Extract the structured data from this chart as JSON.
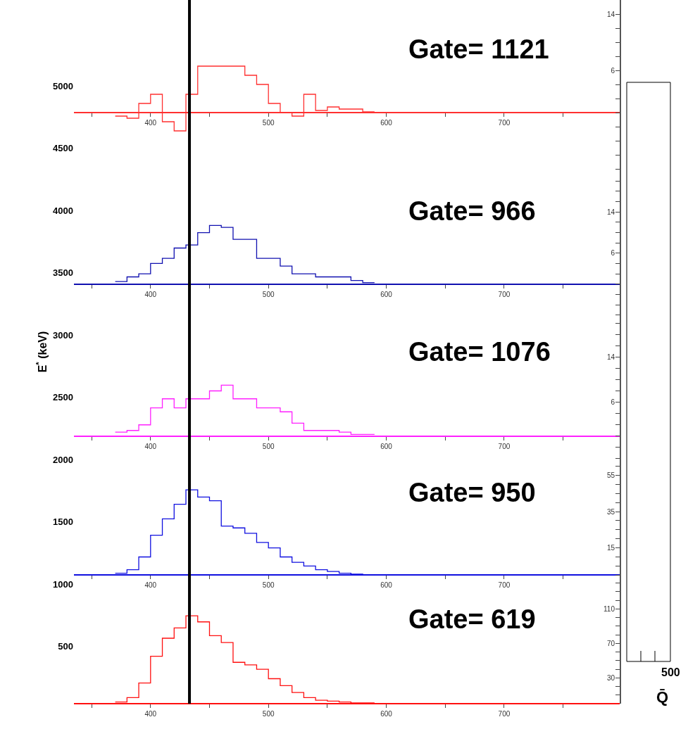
{
  "chart_data": [
    {
      "type": "histogram",
      "color": "#ff3030",
      "bins": [
        370,
        380,
        390,
        400,
        410,
        420,
        430,
        440,
        450,
        460,
        470,
        480,
        490,
        500,
        510,
        520,
        530,
        540,
        550,
        560,
        570,
        580,
        590
      ],
      "values": [
        -0.5,
        -0.8,
        1.3,
        2.6,
        -1.3,
        -2.6,
        2.6,
        6.6,
        6.6,
        6.6,
        6.6,
        5.3,
        4,
        1.3,
        0,
        -0.5,
        2.6,
        0.3,
        0.8,
        0.5,
        0.5,
        0.1
      ],
      "xlim": [
        335,
        798
      ],
      "xticks": [
        {
          "value": 350,
          "label": null
        },
        400,
        {
          "value": 450,
          "label": null
        },
        500,
        {
          "value": 550,
          "label": null
        },
        600,
        {
          "value": 650,
          "label": null
        },
        700,
        {
          "value": 750,
          "label": null
        }
      ],
      "ylim": [
        -9,
        16
      ],
      "yticks": [
        {
          "value": -8,
          "label": null
        },
        {
          "value": -6,
          "label": null
        },
        {
          "value": -4,
          "label": null
        },
        {
          "value": -2,
          "label": null
        },
        {
          "value": 0,
          "label": null
        },
        {
          "value": 2,
          "label": null
        },
        {
          "value": 4,
          "label": null
        },
        6,
        {
          "value": 8,
          "label": null
        },
        {
          "value": 10,
          "label": null
        },
        {
          "value": 12,
          "label": null
        },
        14,
        {
          "value": 16,
          "label": null
        }
      ],
      "ref_lines": [
        {
          "axis": "x",
          "value": 433,
          "color": "#000000"
        }
      ],
      "annotations": [
        "Gate= 1121"
      ],
      "y2label": "E$^{*}$ (keV)",
      "y2lim": [
        41,
        5690
      ],
      "y2ticks": [
        500,
        1000,
        1500,
        2000,
        2500,
        3000,
        3500,
        4000,
        4500,
        5000
      ]
    },
    {
      "type": "histogram",
      "color": "#1010b0",
      "bins": [
        370,
        380,
        390,
        400,
        410,
        420,
        430,
        440,
        450,
        460,
        470,
        480,
        490,
        500,
        510,
        520,
        530,
        540,
        550,
        560,
        570,
        580,
        590
      ],
      "values": [
        0.5,
        1.4,
        2,
        4,
        5,
        7,
        7.6,
        10,
        11.4,
        11,
        8.7,
        8.7,
        5,
        5,
        3.5,
        2,
        2,
        1.4,
        1.4,
        1.4,
        0.7,
        0.3
      ],
      "xlim": [
        335,
        798
      ],
      "xticks": [
        {
          "value": 350,
          "label": null
        },
        400,
        {
          "value": 450,
          "label": null
        },
        500,
        {
          "value": 550,
          "label": null
        },
        600,
        {
          "value": 650,
          "label": null
        },
        700,
        {
          "value": 750,
          "label": null
        }
      ],
      "ylim": [
        -7,
        21
      ],
      "yticks": [
        {
          "value": -6,
          "label": null
        },
        {
          "value": -4,
          "label": null
        },
        {
          "value": -2,
          "label": null
        },
        {
          "value": 0,
          "label": null
        },
        {
          "value": 2,
          "label": null
        },
        {
          "value": 4,
          "label": null
        },
        6,
        {
          "value": 8,
          "label": null
        },
        {
          "value": 10,
          "label": null
        },
        {
          "value": 12,
          "label": null
        },
        14,
        {
          "value": 16,
          "label": null
        },
        {
          "value": 18,
          "label": null
        },
        {
          "value": 20,
          "label": null
        }
      ],
      "ref_lines": [
        {
          "axis": "x",
          "value": 433,
          "color": "#000000"
        }
      ],
      "annotations": [
        "Gate= 966"
      ]
    },
    {
      "type": "histogram",
      "color": "#ff20ff",
      "bins": [
        370,
        380,
        390,
        400,
        410,
        420,
        430,
        440,
        450,
        460,
        470,
        480,
        490,
        500,
        510,
        520,
        530,
        540,
        550,
        560,
        570,
        580,
        590
      ],
      "values": [
        0.7,
        1,
        2,
        5,
        6.6,
        5,
        6.6,
        6.6,
        8,
        9,
        6.6,
        6.6,
        5,
        5,
        4.3,
        2.3,
        1,
        1,
        1,
        0.7,
        0.3,
        0.3
      ],
      "xlim": [
        335,
        798
      ],
      "xticks": [
        {
          "value": 350,
          "label": null
        },
        400,
        {
          "value": 450,
          "label": null
        },
        500,
        {
          "value": 550,
          "label": null
        },
        600,
        {
          "value": 650,
          "label": null
        },
        700,
        {
          "value": 750,
          "label": null
        }
      ],
      "ylim": [
        -5,
        20.5
      ],
      "yticks": [
        {
          "value": -4,
          "label": null
        },
        {
          "value": -2,
          "label": null
        },
        {
          "value": 0,
          "label": null
        },
        {
          "value": 2,
          "label": null
        },
        {
          "value": 4,
          "label": null
        },
        6,
        {
          "value": 8,
          "label": null
        },
        {
          "value": 10,
          "label": null
        },
        {
          "value": 12,
          "label": null
        },
        14,
        {
          "value": 16,
          "label": null
        },
        {
          "value": 18,
          "label": null
        },
        {
          "value": 20,
          "label": null
        }
      ],
      "ref_lines": [
        {
          "axis": "x",
          "value": 433,
          "color": "#000000"
        }
      ],
      "annotations": [
        "Gate= 1076"
      ]
    },
    {
      "type": "histogram",
      "color": "#1010e0",
      "bins": [
        370,
        380,
        390,
        400,
        410,
        420,
        430,
        440,
        450,
        460,
        470,
        480,
        490,
        500,
        510,
        520,
        530,
        540,
        550,
        560,
        570,
        580,
        590
      ],
      "values": [
        1,
        3,
        10,
        22,
        31,
        39,
        47,
        43,
        41,
        27,
        26,
        23,
        18,
        15,
        10,
        7,
        5,
        3,
        2,
        1,
        0.5,
        0.2
      ],
      "xlim": [
        335,
        798
      ],
      "xticks": [
        {
          "value": 350,
          "label": null
        },
        400,
        {
          "value": 450,
          "label": null
        },
        500,
        {
          "value": 550,
          "label": null
        },
        600,
        {
          "value": 650,
          "label": null
        },
        700,
        {
          "value": 750,
          "label": null
        }
      ],
      "ylim": [
        -3,
        61
      ],
      "yticks": [
        {
          "value": 0,
          "label": null
        },
        {
          "value": 5,
          "label": null
        },
        {
          "value": 10,
          "label": null
        },
        15,
        {
          "value": 20,
          "label": null
        },
        {
          "value": 25,
          "label": null
        },
        {
          "value": 30,
          "label": null
        },
        35,
        {
          "value": 40,
          "label": null
        },
        {
          "value": 45,
          "label": null
        },
        {
          "value": 50,
          "label": null
        },
        55,
        {
          "value": 60,
          "label": null
        }
      ],
      "ref_lines": [
        {
          "axis": "x",
          "value": 433,
          "color": "#000000"
        }
      ],
      "annotations": [
        "Gate= 950"
      ]
    },
    {
      "type": "histogram",
      "color": "#ff1010",
      "bins": [
        370,
        380,
        390,
        400,
        410,
        420,
        430,
        440,
        450,
        460,
        470,
        480,
        490,
        500,
        510,
        520,
        530,
        540,
        550,
        560,
        570,
        580,
        590
      ],
      "values": [
        2,
        7,
        24,
        55,
        76,
        88,
        102,
        95,
        79,
        71,
        48,
        45,
        40,
        29,
        21,
        13,
        7,
        4,
        3,
        2,
        1,
        1
      ],
      "xlim": [
        335,
        798
      ],
      "xticks": [
        {
          "value": 350,
          "label": null
        },
        400,
        {
          "value": 450,
          "label": null
        },
        500,
        {
          "value": 550,
          "label": null
        },
        600,
        {
          "value": 650,
          "label": null
        },
        700,
        {
          "value": 750,
          "label": null
        }
      ],
      "ylim": [
        0,
        143
      ],
      "yticks": [
        {
          "value": 10,
          "label": null
        },
        {
          "value": 20,
          "label": null
        },
        30,
        {
          "value": 40,
          "label": null
        },
        {
          "value": 50,
          "label": null
        },
        {
          "value": 60,
          "label": null
        },
        70,
        {
          "value": 80,
          "label": null
        },
        {
          "value": 90,
          "label": null
        },
        {
          "value": 100,
          "label": null
        },
        110,
        {
          "value": 120,
          "label": null
        },
        {
          "value": 130,
          "label": null
        },
        {
          "value": 140,
          "label": null
        }
      ],
      "ref_lines": [
        {
          "axis": "x",
          "value": 433,
          "color": "#000000"
        }
      ],
      "annotations": [
        "Gate= 619"
      ]
    },
    {
      "type": "other",
      "annotations": [
        "500",
        "Q̄"
      ]
    }
  ]
}
